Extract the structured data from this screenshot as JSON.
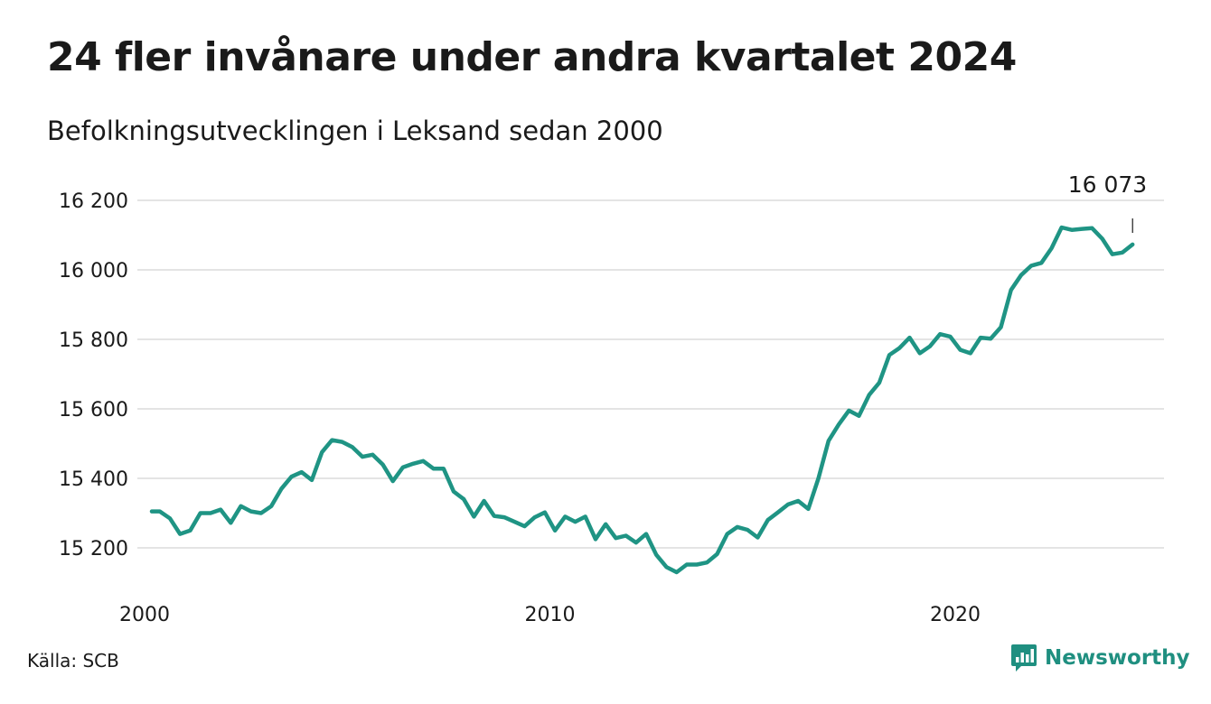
{
  "colors": {
    "line": "#1f9484",
    "grid": "#dcdcdc",
    "text": "#1a1a1a",
    "brand": "#1f8f80"
  },
  "header": {
    "title": "24 fler invånare under andra kvartalet 2024",
    "subtitle": "Befolkningsutvecklingen i Leksand sedan 2000"
  },
  "footer": {
    "source": "Källa: SCB",
    "brand_name": "Newsworthy",
    "brand_icon": "chart-bubble-icon"
  },
  "chart_data": {
    "type": "line",
    "title": "24 fler invånare under andra kvartalet 2024",
    "subtitle": "Befolkningsutvecklingen i Leksand sedan 2000",
    "xlabel": "",
    "ylabel": "",
    "grid": true,
    "legend": "none",
    "x_ticks": [
      "2000",
      "2010",
      "2020"
    ],
    "x_range": [
      "2000Q1",
      "2024Q4"
    ],
    "y_ticks": [
      15200,
      15400,
      15600,
      15800,
      16000,
      16200
    ],
    "y_tick_labels": [
      "15 200",
      "15 400",
      "15 600",
      "15 800",
      "16 000",
      "16 200"
    ],
    "ylim": [
      15090,
      16250
    ],
    "end_label": "16 073",
    "series": [
      {
        "x": [
          "2000Q1",
          "2000Q2",
          "2000Q3",
          "2000Q4",
          "2001Q1",
          "2001Q2",
          "2001Q3",
          "2001Q4",
          "2002Q1",
          "2002Q2",
          "2002Q3",
          "2002Q4",
          "2003Q1",
          "2003Q2",
          "2003Q3",
          "2003Q4",
          "2004Q1",
          "2004Q2",
          "2004Q3",
          "2004Q4",
          "2005Q1",
          "2005Q2",
          "2005Q3",
          "2005Q4",
          "2006Q1",
          "2006Q2",
          "2006Q3",
          "2006Q4",
          "2007Q1",
          "2007Q2",
          "2007Q3",
          "2007Q4",
          "2008Q1",
          "2008Q2",
          "2008Q3",
          "2008Q4",
          "2009Q1",
          "2009Q2",
          "2009Q3",
          "2009Q4",
          "2010Q1",
          "2010Q2",
          "2010Q3",
          "2010Q4",
          "2011Q1",
          "2011Q2",
          "2011Q3",
          "2011Q4",
          "2012Q1",
          "2012Q2",
          "2012Q3",
          "2012Q4",
          "2013Q1",
          "2013Q2",
          "2013Q3",
          "2013Q4",
          "2014Q1",
          "2014Q2",
          "2014Q3",
          "2014Q4",
          "2015Q1",
          "2015Q2",
          "2015Q3",
          "2015Q4",
          "2016Q1",
          "2016Q2",
          "2016Q3",
          "2016Q4",
          "2017Q1",
          "2017Q2",
          "2017Q3",
          "2017Q4",
          "2018Q1",
          "2018Q2",
          "2018Q3",
          "2018Q4",
          "2019Q1",
          "2019Q2",
          "2019Q3",
          "2019Q4",
          "2020Q1",
          "2020Q2",
          "2020Q3",
          "2020Q4",
          "2021Q1",
          "2021Q2",
          "2021Q3",
          "2021Q4",
          "2022Q1",
          "2022Q2",
          "2022Q3",
          "2022Q4",
          "2023Q1",
          "2023Q2",
          "2023Q3",
          "2023Q4",
          "2024Q1",
          "2024Q2"
        ],
        "values": [
          15305,
          15305,
          15285,
          15240,
          15250,
          15300,
          15300,
          15310,
          15272,
          15320,
          15305,
          15300,
          15320,
          15370,
          15405,
          15418,
          15395,
          15475,
          15510,
          15505,
          15490,
          15462,
          15468,
          15440,
          15392,
          15432,
          15442,
          15450,
          15428,
          15428,
          15362,
          15340,
          15290,
          15335,
          15292,
          15288,
          15275,
          15262,
          15288,
          15302,
          15250,
          15290,
          15275,
          15290,
          15225,
          15268,
          15228,
          15235,
          15215,
          15240,
          15180,
          15145,
          15130,
          15152,
          15152,
          15158,
          15182,
          15240,
          15260,
          15252,
          15230,
          15280,
          15302,
          15325,
          15335,
          15312,
          15400,
          15508,
          15555,
          15595,
          15580,
          15640,
          15675,
          15755,
          15775,
          15805,
          15760,
          15780,
          15815,
          15808,
          15770,
          15760,
          15805,
          15802,
          15835,
          15942,
          15985,
          16012,
          16020,
          16062,
          16122,
          16115,
          16118,
          16120,
          16090,
          16045,
          16050,
          16073
        ]
      }
    ]
  }
}
